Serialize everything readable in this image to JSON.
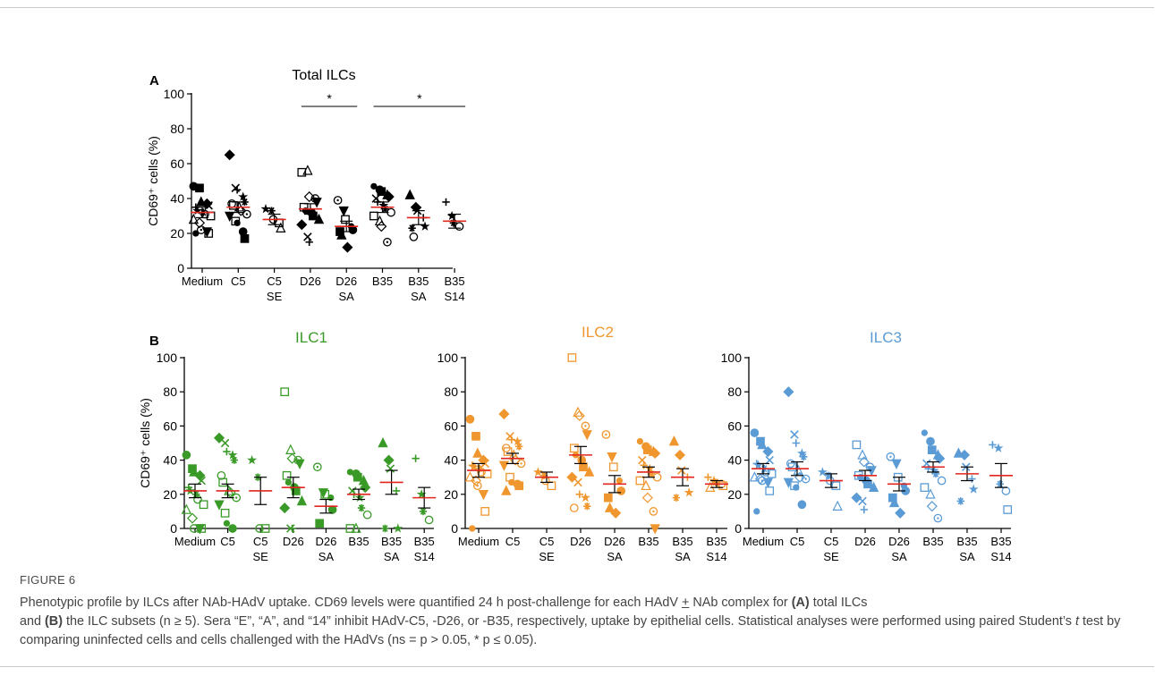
{
  "figure_label": "FIGURE 6",
  "caption": {
    "seg1": "Phenotypic profile by ILCs after NAb-HAdV uptake. CD69 levels were quantified 24 h post-challenge for each HAdV ",
    "pm": "+",
    "seg2": " NAb complex for ",
    "refA": "(A)",
    "seg3": " total ILCs",
    "seg4": "and ",
    "refB": "(B)",
    "seg5": " the ILC subsets (n ",
    "ge": "≥",
    "seg6": " 5). Sera “E”, “A”, and “14” inhibit HAdV-C5, -D26, or -B35, respectively, uptake by epithelial cells. Statistical analyses were performed using paired Student’s ",
    "t": "t",
    "seg7": " test by comparing uninfected cells and cells challenged with the HAdVs (ns = p > 0.05, * p ≤ 0.05)."
  },
  "colors": {
    "total": "#000000",
    "ilc1": "#3a9a28",
    "ilc2": "#f0962e",
    "ilc3": "#5a9bd5",
    "mean_line": "#e2251f"
  },
  "chart_data": [
    {
      "panel": "A",
      "type": "scatter",
      "title": "Total ILCs",
      "ylabel": "CD69⁺ cells (%)",
      "ylim": [
        0,
        100
      ],
      "yticks": [
        0,
        20,
        40,
        60,
        80,
        100
      ],
      "categories": [
        "Medium",
        "C5",
        "C5\nSE",
        "D26",
        "D26\nSA",
        "B35",
        "B35\nSA",
        "B35\nS14"
      ],
      "color": "#000000",
      "points": [
        [
          47,
          46,
          38,
          37,
          36,
          35,
          33,
          32,
          31,
          30,
          28,
          26,
          22,
          21,
          20,
          20
        ],
        [
          65,
          46,
          45,
          41,
          38,
          37,
          36,
          35,
          33,
          31,
          30,
          27,
          26,
          21,
          17
        ],
        [
          34,
          33,
          28,
          26,
          23
        ],
        [
          55,
          56,
          41,
          40,
          38,
          35,
          33,
          32,
          30,
          28,
          25,
          18,
          15
        ],
        [
          39,
          33,
          28,
          24,
          22,
          21,
          19,
          12
        ],
        [
          47,
          45,
          44,
          42,
          41,
          40,
          38,
          36,
          34,
          32,
          30,
          27,
          24,
          15
        ],
        [
          42,
          35,
          33,
          29,
          24,
          23,
          18
        ],
        [
          38,
          30,
          26,
          24
        ]
      ],
      "means": [
        32,
        35,
        28,
        34,
        24,
        35,
        29,
        27
      ],
      "sem": [
        3,
        3,
        3,
        3,
        3,
        3,
        4,
        4
      ],
      "significance": [
        {
          "from": "D26",
          "to": "D26\nSA",
          "label": "*"
        },
        {
          "from": "B35",
          "to": "B35\nS14",
          "label": "*"
        }
      ]
    },
    {
      "panel": "B",
      "type": "scatter",
      "title": "ILC1",
      "ylabel": "CD69⁺ cells (%)",
      "ylim": [
        0,
        100
      ],
      "yticks": [
        0,
        20,
        40,
        60,
        80,
        100
      ],
      "categories": [
        "Medium",
        "C5",
        "C5\nSE",
        "D26",
        "D26\nSA",
        "B35",
        "B35\nSA",
        "B35\nS14"
      ],
      "color": "#3a9a28",
      "points": [
        [
          43,
          35,
          33,
          31,
          28,
          24,
          22,
          20,
          17,
          14,
          11,
          6,
          0,
          0,
          0
        ],
        [
          53,
          50,
          45,
          43,
          40,
          31,
          27,
          22,
          21,
          18,
          14,
          9,
          3,
          0
        ],
        [
          40,
          30,
          0,
          0
        ],
        [
          80,
          46,
          41,
          40,
          38,
          31,
          27,
          24,
          22,
          16,
          12,
          0,
          0
        ],
        [
          36,
          21,
          20,
          18,
          11,
          3
        ],
        [
          33,
          32,
          30,
          28,
          24,
          22,
          20,
          18,
          12,
          8,
          0,
          0
        ],
        [
          50,
          40,
          35,
          22,
          0,
          0
        ],
        [
          41,
          20,
          10,
          5
        ]
      ],
      "means": [
        22,
        22,
        22,
        24,
        13,
        20,
        27,
        18
      ],
      "sem": [
        4,
        4,
        8,
        6,
        4,
        3,
        7,
        6
      ],
      "significance": []
    },
    {
      "panel": "B",
      "type": "scatter",
      "title": "ILC2",
      "ylabel": "",
      "ylim": [
        0,
        100
      ],
      "yticks": [
        0,
        20,
        40,
        60,
        80,
        100
      ],
      "categories": [
        "Medium",
        "C5",
        "C5\nSE",
        "D26",
        "D26\nSA",
        "B35",
        "B35\nSA",
        "B35\nS14"
      ],
      "color": "#f0962e",
      "points": [
        [
          64,
          54,
          44,
          40,
          38,
          37,
          36,
          35,
          33,
          32,
          30,
          28,
          25,
          20,
          10,
          0
        ],
        [
          67,
          54,
          52,
          51,
          48,
          47,
          45,
          43,
          40,
          38,
          37,
          30,
          27,
          26,
          25,
          22
        ],
        [
          33,
          31,
          28,
          25
        ],
        [
          100,
          68,
          66,
          60,
          55,
          47,
          43,
          40,
          36,
          33,
          30,
          27,
          20,
          18,
          13,
          12
        ],
        [
          55,
          42,
          36,
          28,
          22,
          18,
          12,
          9
        ],
        [
          51,
          48,
          46,
          45,
          44,
          40,
          37,
          35,
          32,
          30,
          28,
          25,
          18,
          10,
          0
        ],
        [
          51,
          43,
          34,
          30,
          21,
          18
        ],
        [
          30,
          28,
          27,
          26,
          25,
          24
        ]
      ],
      "means": [
        34,
        41,
        30,
        43,
        26,
        33,
        30,
        26
      ],
      "sem": [
        4,
        3,
        3,
        5,
        5,
        3,
        5,
        2
      ],
      "significance": []
    },
    {
      "panel": "B",
      "type": "scatter",
      "title": "ILC3",
      "ylabel": "",
      "ylim": [
        0,
        100
      ],
      "yticks": [
        0,
        20,
        40,
        60,
        80,
        100
      ],
      "categories": [
        "Medium",
        "C5",
        "C5\nSE",
        "D26",
        "D26\nSA",
        "B35",
        "B35\nSA",
        "B35\nS14"
      ],
      "color": "#5a9bd5",
      "points": [
        [
          56,
          51,
          49,
          45,
          40,
          38,
          37,
          35,
          33,
          32,
          30,
          29,
          28,
          27,
          22,
          10
        ],
        [
          80,
          55,
          50,
          44,
          42,
          38,
          36,
          34,
          30,
          29,
          27,
          25,
          24,
          14
        ],
        [
          33,
          31,
          28,
          25,
          13
        ],
        [
          49,
          43,
          39,
          36,
          34,
          31,
          30,
          28,
          26,
          24,
          18,
          16,
          11
        ],
        [
          42,
          38,
          30,
          25,
          22,
          18,
          15,
          9
        ],
        [
          56,
          51,
          46,
          43,
          41,
          38,
          35,
          34,
          32,
          28,
          24,
          20,
          13,
          6
        ],
        [
          44,
          43,
          36,
          29,
          23,
          16
        ],
        [
          49,
          47,
          26,
          22,
          11
        ]
      ],
      "means": [
        35,
        35,
        28,
        31,
        26,
        36,
        32,
        31
      ],
      "sem": [
        3,
        4,
        4,
        3,
        4,
        3,
        4,
        7
      ],
      "significance": []
    }
  ]
}
